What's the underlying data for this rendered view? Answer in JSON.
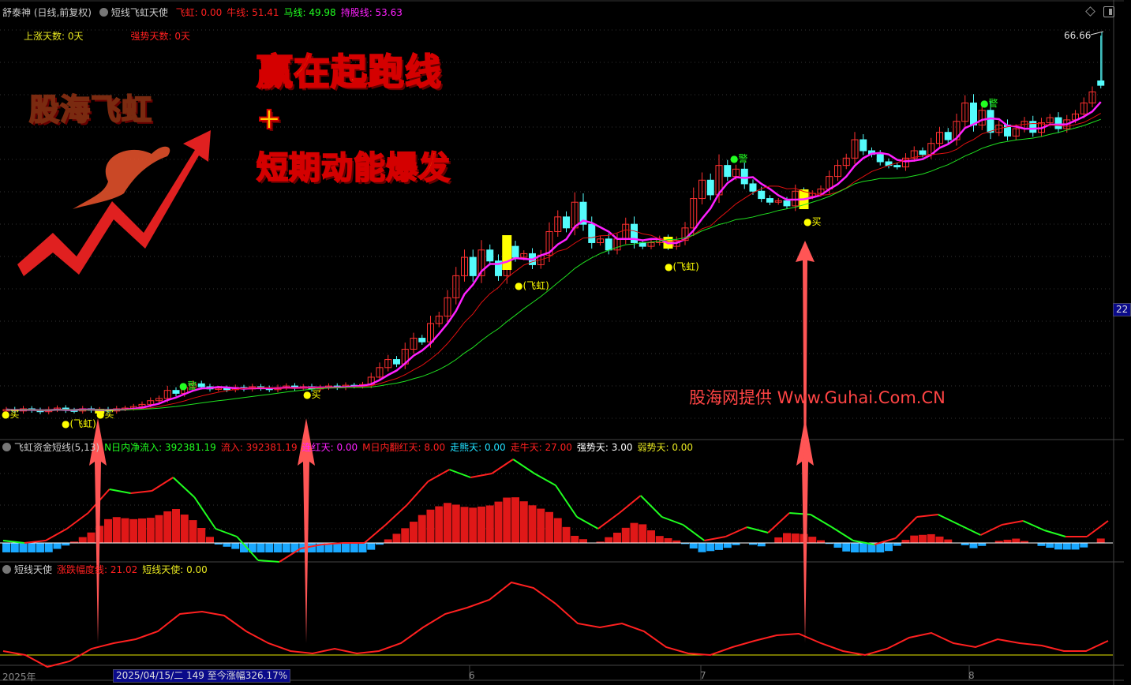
{
  "header": {
    "stock": "舒泰神 (日线,前复权)",
    "indicator": "短线飞虹天使",
    "values": [
      {
        "label": "飞虹: 0.00",
        "color": "#ff2020"
      },
      {
        "label": "牛线: 51.41",
        "color": "#ff2020"
      },
      {
        "label": "马线: 49.98",
        "color": "#20ff20"
      },
      {
        "label": "持股线: 53.63",
        "color": "#ff20ff"
      }
    ],
    "counts": [
      {
        "label": "上涨天数: 0天",
        "color": "#e8e820"
      },
      {
        "label": "强势天数: 0天",
        "color": "#ff2020"
      }
    ]
  },
  "promo": {
    "logo_text": "股海飞虹",
    "headline1": "赢在起跑线",
    "plus": "+",
    "headline2": "短期动能爆发",
    "watermark": "股海网提供 Www.Guhai.Com.CN"
  },
  "panel1": {
    "title": "飞虹资金短线(5,13)",
    "values": [
      {
        "label": "N日内净流入: 392381.19",
        "color": "#20ff20"
      },
      {
        "label": "流入: 392381.19",
        "color": "#ff2020"
      },
      {
        "label": "连红天: 0.00",
        "color": "#ff20ff"
      },
      {
        "label": "M日内翻红天: 8.00",
        "color": "#ff2020"
      },
      {
        "label": "走熊天: 0.00",
        "color": "#20e0ff"
      },
      {
        "label": "走牛天: 27.00",
        "color": "#ff2020"
      },
      {
        "label": "强势天: 3.00",
        "color": "#ffffff"
      },
      {
        "label": "弱势天: 0.00",
        "color": "#e8e820"
      }
    ]
  },
  "panel2": {
    "title": "短线天使",
    "values": [
      {
        "label": "涨跌幅度线: 21.02",
        "color": "#ff2020"
      },
      {
        "label": "短线天使: 0.00",
        "color": "#e8e820"
      }
    ]
  },
  "axis": {
    "year": "2025年",
    "tooltip": "2025/04/15/二 149 至今涨幅326.17%",
    "months": [
      "6",
      "7",
      "8"
    ],
    "right_label": "22",
    "high_label": "66.66"
  },
  "markers": {
    "buy": "●买",
    "feihong": "●(飞虹)",
    "warn": "●警"
  },
  "colors": {
    "up": "#ff3030",
    "down": "#54fcfc",
    "ma5": "#ff20ff",
    "ma10": "#e01010",
    "ma20": "#20e020",
    "signal": "#ffff00",
    "arrow": "#ff5555"
  },
  "chart_data": {
    "type": "candlestick",
    "high": 66.66,
    "closes": [
      15.8,
      15.6,
      15.9,
      15.7,
      15.5,
      15.8,
      16.0,
      15.7,
      15.6,
      15.9,
      15.7,
      15.8,
      15.6,
      15.9,
      16.0,
      16.2,
      16.5,
      17.0,
      17.3,
      18.4,
      18.0,
      18.8,
      19.3,
      18.9,
      18.6,
      18.7,
      18.5,
      18.8,
      18.6,
      18.9,
      18.7,
      18.5,
      18.8,
      19.0,
      18.7,
      18.9,
      18.6,
      18.8,
      19.0,
      18.8,
      19.1,
      19.0,
      19.2,
      20.2,
      21.5,
      22.6,
      22.0,
      24.0,
      25.5,
      25.0,
      27.5,
      28.5,
      31.0,
      34.0,
      36.5,
      34.0,
      37.5,
      36.0,
      34.0,
      38.0,
      36.5,
      37.0,
      35.5,
      36.8,
      40.0,
      42.0,
      40.5,
      44.0,
      41.0,
      38.5,
      39.0,
      37.5,
      39.0,
      41.0,
      38.5,
      38.0,
      38.5,
      39.0,
      38.0,
      38.8,
      40.5,
      44.5,
      47.0,
      45.0,
      49.0,
      47.5,
      48.5,
      46.5,
      45.5,
      44.5,
      44.0,
      44.2,
      43.5,
      45.5,
      44.8,
      45.2,
      45.8,
      47.5,
      49.0,
      50.0,
      52.5,
      51.0,
      50.5,
      49.5,
      49.0,
      48.8,
      50.0,
      51.0,
      50.5,
      52.0,
      53.5,
      52.5,
      55.0,
      57.5,
      54.5,
      56.5,
      53.5,
      54.5,
      53.0,
      54.0,
      55.0,
      53.5,
      54.8,
      55.5,
      54.0,
      55.2,
      56.0,
      57.5,
      59.0,
      60.5
    ],
    "moving_averages": [
      "ma5",
      "ma10",
      "ma20"
    ],
    "flow_line": [
      3,
      0,
      3,
      18,
      38,
      68,
      63,
      66,
      83,
      58,
      18,
      8,
      -22,
      -24,
      -7,
      -2,
      0,
      0,
      23,
      48,
      78,
      93,
      83,
      88,
      106,
      88,
      73,
      33,
      18,
      38,
      60,
      33,
      23,
      3,
      8,
      20,
      13,
      38,
      36,
      20,
      3,
      -2,
      6,
      33,
      36,
      23,
      10,
      23,
      28,
      16,
      8,
      8,
      28
    ],
    "angel_line": [
      5,
      0,
      -15,
      -8,
      8,
      15,
      20,
      30,
      52,
      55,
      50,
      30,
      15,
      5,
      2,
      8,
      2,
      5,
      15,
      35,
      52,
      60,
      70,
      92,
      85,
      65,
      40,
      35,
      40,
      30,
      10,
      2,
      0,
      10,
      18,
      25,
      27,
      15,
      5,
      0,
      8,
      22,
      28,
      15,
      10,
      20,
      15,
      12,
      5,
      5,
      18
    ]
  }
}
